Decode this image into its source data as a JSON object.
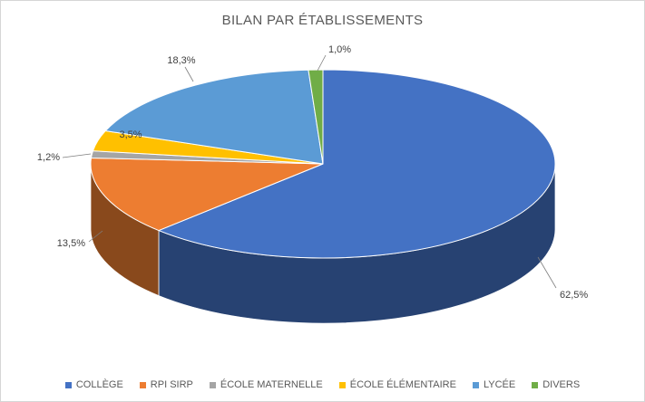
{
  "title": "BILAN PAR ÉTABLISSEMENTS",
  "chart_data": {
    "type": "pie",
    "style": "3d",
    "title": "BILAN PAR ÉTABLISSEMENTS",
    "categories": [
      "COLLÈGE",
      "RPI SIRP",
      "ÉCOLE MATERNELLE",
      "ÉCOLE ÉLÉMENTAIRE",
      "LYCÉE",
      "DIVERS"
    ],
    "values": [
      62.5,
      13.5,
      1.2,
      3.5,
      18.3,
      1.0
    ],
    "data_labels": [
      "62,5%",
      "13,5%",
      "1,2%",
      "3,5%",
      "18,3%",
      "1,0%"
    ],
    "colors": [
      "#4472C4",
      "#ED7D31",
      "#A5A5A5",
      "#FFC000",
      "#5B9BD5",
      "#70AD47"
    ],
    "start_angle": 0,
    "direction": "clockwise",
    "legend_position": "bottom",
    "label_color": "#404040",
    "title_color": "#595959"
  }
}
